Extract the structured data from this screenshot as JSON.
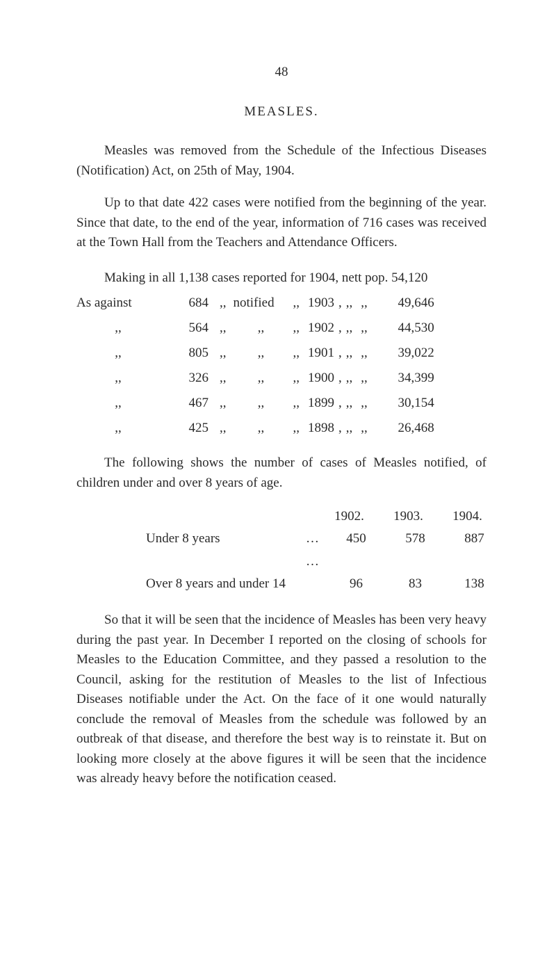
{
  "page_number": "48",
  "title": "MEASLES.",
  "para1": "Measles was removed from the Schedule of the Infectious Diseases (Notification) Act, on 25th of May, 1904.",
  "para2": "Up to that date 422 cases were notified from the beginning of the year. Since that date, to the end of the year, information of 716 cases was received at the Town Hall from the Teachers and Attendance Officers.",
  "stats": {
    "lead_main": "Making in all 1,138 cases reported for 1904, nett pop. 54,120",
    "rows": [
      {
        "lead": "As against",
        "num": "684",
        "label": "notified",
        "year": "1903",
        "pop": "49,646"
      },
      {
        "lead": " ",
        "num": "564",
        "label": " ",
        "year": "1902",
        "pop": "44,530"
      },
      {
        "lead": " ",
        "num": "805",
        "label": " ",
        "year": "1901",
        "pop": "39,022"
      },
      {
        "lead": " ",
        "num": "326",
        "label": " ",
        "year": "1900",
        "pop": "34,399"
      },
      {
        "lead": " ",
        "num": "467",
        "label": " ",
        "year": "1899",
        "pop": "30,154"
      },
      {
        "lead": " ",
        "num": "425",
        "label": " ",
        "year": "1898",
        "pop": "26,468"
      }
    ]
  },
  "para3": "The following shows the number of cases of Measles notified, of children under and over 8 years of age.",
  "under_over": {
    "headers": [
      "1902.",
      "1903.",
      "1904."
    ],
    "rows": [
      {
        "label": "Under 8 years",
        "dots": "…   …",
        "vals": [
          "450",
          "578",
          "887"
        ]
      },
      {
        "label": "Over 8 years and under 14",
        "dots": "",
        "vals": [
          "96",
          "83",
          "138"
        ]
      }
    ]
  },
  "para4": "So that it will be seen that the incidence of Measles has been very heavy during the past year. In December I reported on the closing of schools for Measles to the Education Committee, and they passed a resolution to the Council, asking for the restitution of Measles to the list of Infectious Diseases notifiable under the Act. On the face of it one would naturally conclude the removal of Measles from the schedule was followed by an outbreak of that disease, and therefore the best way is to reinstate it. But on looking more closely at the above figures it will be seen that the incidence was already heavy before the notification ceased."
}
